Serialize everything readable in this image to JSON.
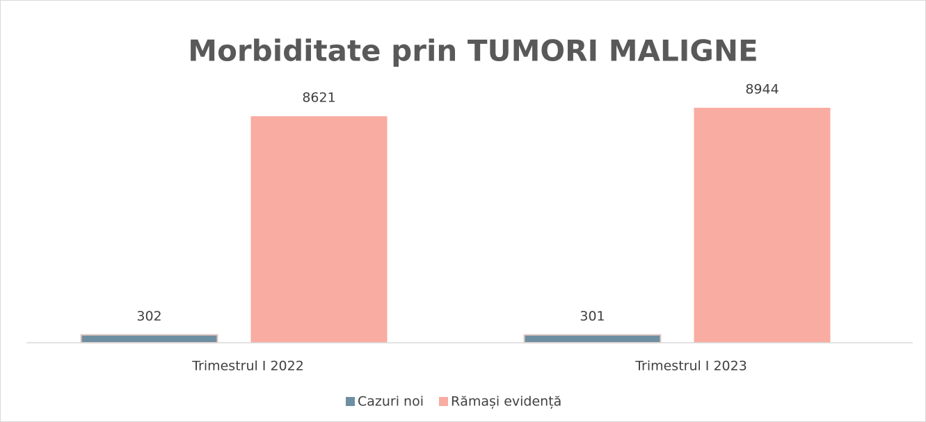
{
  "chart_data": {
    "type": "bar",
    "title": "Morbiditate prin TUMORI MALIGNE",
    "categories": [
      "Trimestrul I 2022",
      "Trimestrul I 2023"
    ],
    "series": [
      {
        "name": "Cazuri noi",
        "color": "#6e8fa1",
        "values": [
          302,
          301
        ]
      },
      {
        "name": "Rămași evidență",
        "color": "#f9aca1",
        "values": [
          8621,
          8944
        ]
      }
    ],
    "legend": "bottom"
  }
}
